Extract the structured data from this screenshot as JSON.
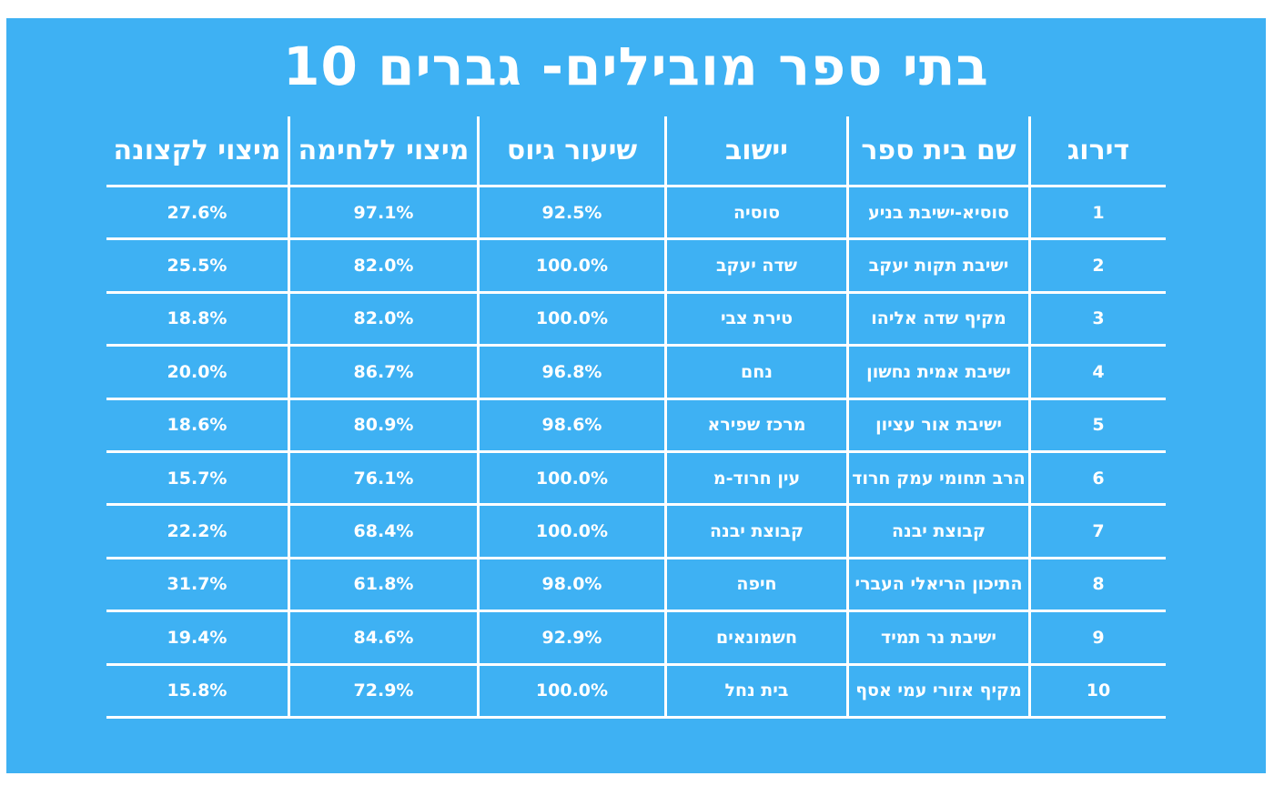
{
  "title": "10 בתי ספר מובילים- גברים",
  "colors": {
    "background": "#3eb1f3",
    "text": "#ffffff",
    "lines": "#ffffff"
  },
  "chart_data": {
    "type": "table",
    "title": "10 בתי ספר מובילים- גברים",
    "columns": [
      "דירוג",
      "שם בית ספר",
      "יישוב",
      "שיעור גיוס",
      "מיצוי ללחימה",
      "מיצוי לקצונה"
    ],
    "rows": [
      [
        "1",
        "סוסיא-ישיבת בניע",
        "סוסיה",
        "92.5%",
        "97.1%",
        "27.6%"
      ],
      [
        "2",
        "ישיבת תקות יעקב",
        "שדה יעקב",
        "100.0%",
        "82.0%",
        "25.5%"
      ],
      [
        "3",
        "מקיף שדה אליהו",
        "טירת צבי",
        "100.0%",
        "82.0%",
        "18.8%"
      ],
      [
        "4",
        "ישיבת אמית נחשון",
        "נחם",
        "96.8%",
        "86.7%",
        "20.0%"
      ],
      [
        "5",
        "ישיבת אור עציון",
        "מרכז שפירא",
        "98.6%",
        "80.9%",
        "18.6%"
      ],
      [
        "6",
        "הרב תחומי עמק חרוד",
        "עין חרוד-מ",
        "100.0%",
        "76.1%",
        "15.7%"
      ],
      [
        "7",
        "קבוצת יבנה",
        "קבוצת יבנה",
        "100.0%",
        "68.4%",
        "22.2%"
      ],
      [
        "8",
        "התיכון הריאלי העברי",
        "חיפה",
        "98.0%",
        "61.8%",
        "31.7%"
      ],
      [
        "9",
        "ישיבת נר תמיד",
        "חשמונאים",
        "92.9%",
        "84.6%",
        "19.4%"
      ],
      [
        "10",
        "מקיף אזורי עמי אסף",
        "בית נחל",
        "100.0%",
        "72.9%",
        "15.8%"
      ]
    ]
  }
}
